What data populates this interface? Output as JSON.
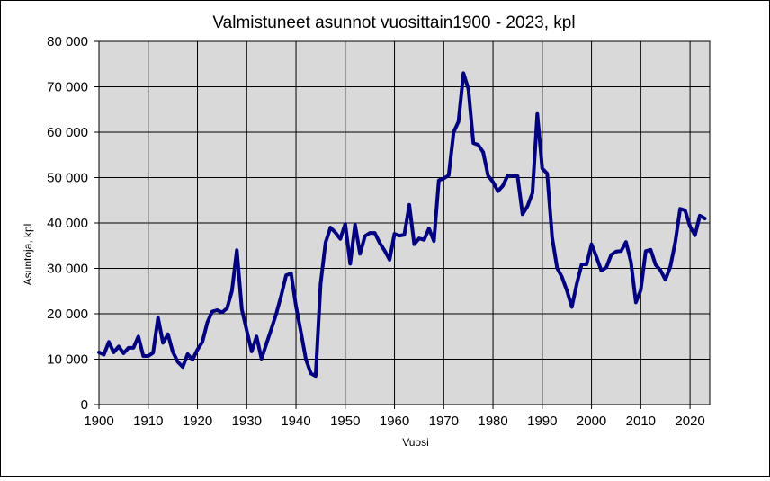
{
  "chart_data": {
    "type": "line",
    "title": "Valmistuneet  asunnot vuosittain1900 - 2023, kpl",
    "xlabel": "Vuosi",
    "ylabel": "Asuntoja, kpl",
    "xlim": [
      1900,
      2024
    ],
    "ylim": [
      0,
      80000
    ],
    "x_ticks": [
      "1900",
      "1910",
      "1920",
      "1930",
      "1940",
      "1950",
      "1960",
      "1970",
      "1980",
      "1990",
      "2000",
      "2010",
      "2020"
    ],
    "x_tick_values": [
      1900,
      1910,
      1920,
      1930,
      1940,
      1950,
      1960,
      1970,
      1980,
      1990,
      2000,
      2010,
      2020
    ],
    "y_ticks": [
      "0",
      "10 000",
      "20 000",
      "30 000",
      "40 000",
      "50 000",
      "60 000",
      "70 000",
      "80 000"
    ],
    "y_tick_values": [
      0,
      10000,
      20000,
      30000,
      40000,
      50000,
      60000,
      70000,
      80000
    ],
    "grid": true,
    "legend": "none",
    "colors": {
      "line": "#000080",
      "plot_background": "#d9d9d9",
      "grid": "#000000"
    },
    "series": [
      {
        "x": [
          1900,
          1901,
          1902,
          1903,
          1904,
          1905,
          1906,
          1907,
          1908,
          1909,
          1910,
          1911,
          1912,
          1913,
          1914,
          1915,
          1916,
          1917,
          1918,
          1919,
          1920,
          1921,
          1922,
          1923,
          1924,
          1925,
          1926,
          1927,
          1928,
          1929,
          1930,
          1931,
          1932,
          1933,
          1934,
          1935,
          1936,
          1937,
          1938,
          1939,
          1940,
          1941,
          1942,
          1943,
          1944,
          1945,
          1946,
          1947,
          1948,
          1949,
          1950,
          1951,
          1952,
          1953,
          1954,
          1955,
          1956,
          1957,
          1958,
          1959,
          1960,
          1961,
          1962,
          1963,
          1964,
          1965,
          1966,
          1967,
          1968,
          1969,
          1970,
          1971,
          1972,
          1973,
          1974,
          1975,
          1976,
          1977,
          1978,
          1979,
          1980,
          1981,
          1982,
          1983,
          1984,
          1985,
          1986,
          1987,
          1988,
          1989,
          1990,
          1991,
          1992,
          1993,
          1994,
          1995,
          1996,
          1997,
          1998,
          1999,
          2000,
          2001,
          2002,
          2003,
          2004,
          2005,
          2006,
          2007,
          2008,
          2009,
          2010,
          2011,
          2012,
          2013,
          2014,
          2015,
          2016,
          2017,
          2018,
          2019,
          2020,
          2021,
          2022,
          2023
        ],
        "values": [
          11500,
          11000,
          13800,
          11500,
          12800,
          11300,
          12500,
          12500,
          15000,
          10700,
          10700,
          11400,
          19100,
          13600,
          15500,
          11600,
          9400,
          8300,
          11100,
          9900,
          12100,
          13800,
          18100,
          20500,
          20800,
          20300,
          21200,
          25000,
          34000,
          21000,
          16300,
          11700,
          15000,
          10100,
          13400,
          16700,
          20000,
          24000,
          28500,
          28900,
          21700,
          16000,
          10000,
          6900,
          6300,
          26600,
          35700,
          39000,
          37900,
          36500,
          39800,
          31000,
          39600,
          33200,
          37100,
          37800,
          37800,
          35600,
          33900,
          31900,
          37600,
          37200,
          37400,
          44000,
          35300,
          36600,
          36300,
          38800,
          36000,
          49400,
          49800,
          50500,
          60000,
          62300,
          73000,
          69500,
          57600,
          57200,
          55600,
          50400,
          49000,
          47000,
          48200,
          50500,
          50400,
          50300,
          41900,
          43700,
          46600,
          64000,
          52000,
          50900,
          36800,
          30100,
          28100,
          25100,
          21500,
          26600,
          30900,
          30900,
          35300,
          32500,
          29500,
          30200,
          33000,
          33700,
          33800,
          35800,
          31400,
          22500,
          25200,
          33800,
          34100,
          30800,
          29600,
          27500,
          30400,
          35800,
          43100,
          42800,
          39200,
          37300,
          41600,
          41000
        ]
      }
    ]
  }
}
